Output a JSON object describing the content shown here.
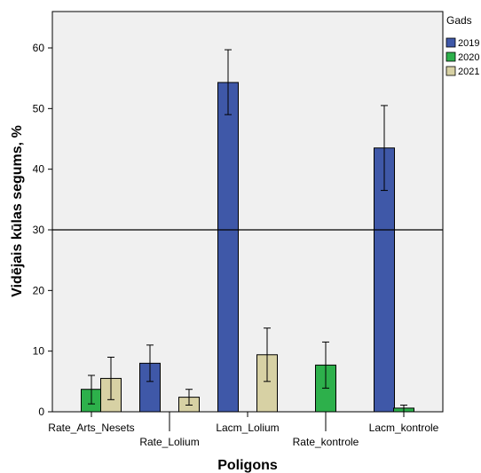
{
  "chart_data": {
    "type": "bar",
    "xlabel": "Poligons",
    "ylabel": "Vidējais kūlas segums, %",
    "ylim": [
      0,
      66
    ],
    "yticks": [
      0,
      10,
      20,
      30,
      40,
      50,
      60
    ],
    "grid": false,
    "reference_line": 30,
    "legend": {
      "title": "Gads",
      "placement": "right"
    },
    "error_bars": true,
    "categories": [
      "Rate_Arts_Nesets",
      "Rate_Lolium",
      "Lacm_Lolium",
      "Rate_kontrole",
      "Lacm_kontrole"
    ],
    "series": [
      {
        "name": "2019",
        "color": "#3f58a8",
        "values": [
          null,
          8.0,
          54.3,
          null,
          43.5
        ],
        "err_low": [
          null,
          5.0,
          49.0,
          null,
          36.5
        ],
        "err_high": [
          null,
          11.0,
          59.7,
          null,
          50.5
        ]
      },
      {
        "name": "2020",
        "color": "#2db04b",
        "values": [
          3.7,
          null,
          null,
          7.7,
          0.6
        ],
        "err_low": [
          1.3,
          null,
          null,
          3.9,
          0.0
        ],
        "err_high": [
          6.0,
          null,
          null,
          11.5,
          1.1
        ]
      },
      {
        "name": "2021",
        "color": "#d7d1a4",
        "values": [
          5.5,
          2.4,
          9.4,
          null,
          null
        ],
        "err_low": [
          2.0,
          1.1,
          5.0,
          null,
          null
        ],
        "err_high": [
          9.0,
          3.7,
          13.8,
          null,
          null
        ]
      }
    ]
  }
}
